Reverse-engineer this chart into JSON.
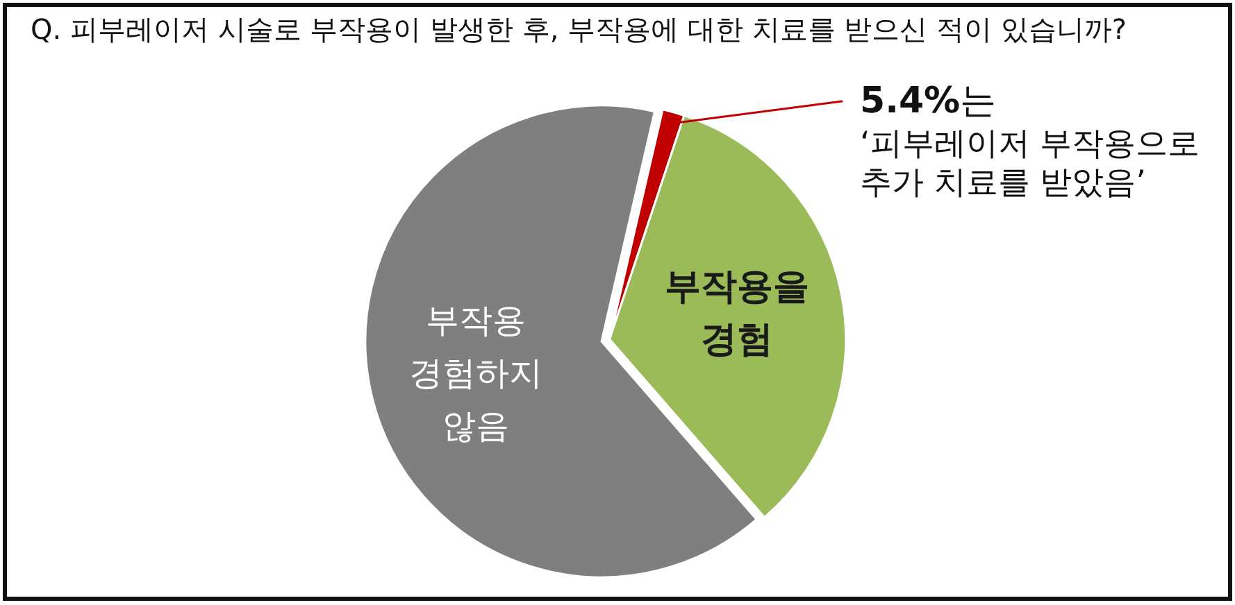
{
  "chart_data": {
    "type": "pie",
    "title": "Q. 피부레이저 시술로 부작용이 발생한 후, 부작용에 대한 치료를 받으신 적이 있습니까?",
    "categories": [
      null,
      "부작용을 경험",
      "부작용 경험하지 않음"
    ],
    "values": [
      1.5,
      33.5,
      65
    ],
    "colors": [
      "#c00000",
      "#9bbb59",
      "#7f7f7f"
    ],
    "annotations": [
      "**5.4%**는",
      "‘피부레이저 부작용으로 추가 치료를 받았음’"
    ]
  }
}
